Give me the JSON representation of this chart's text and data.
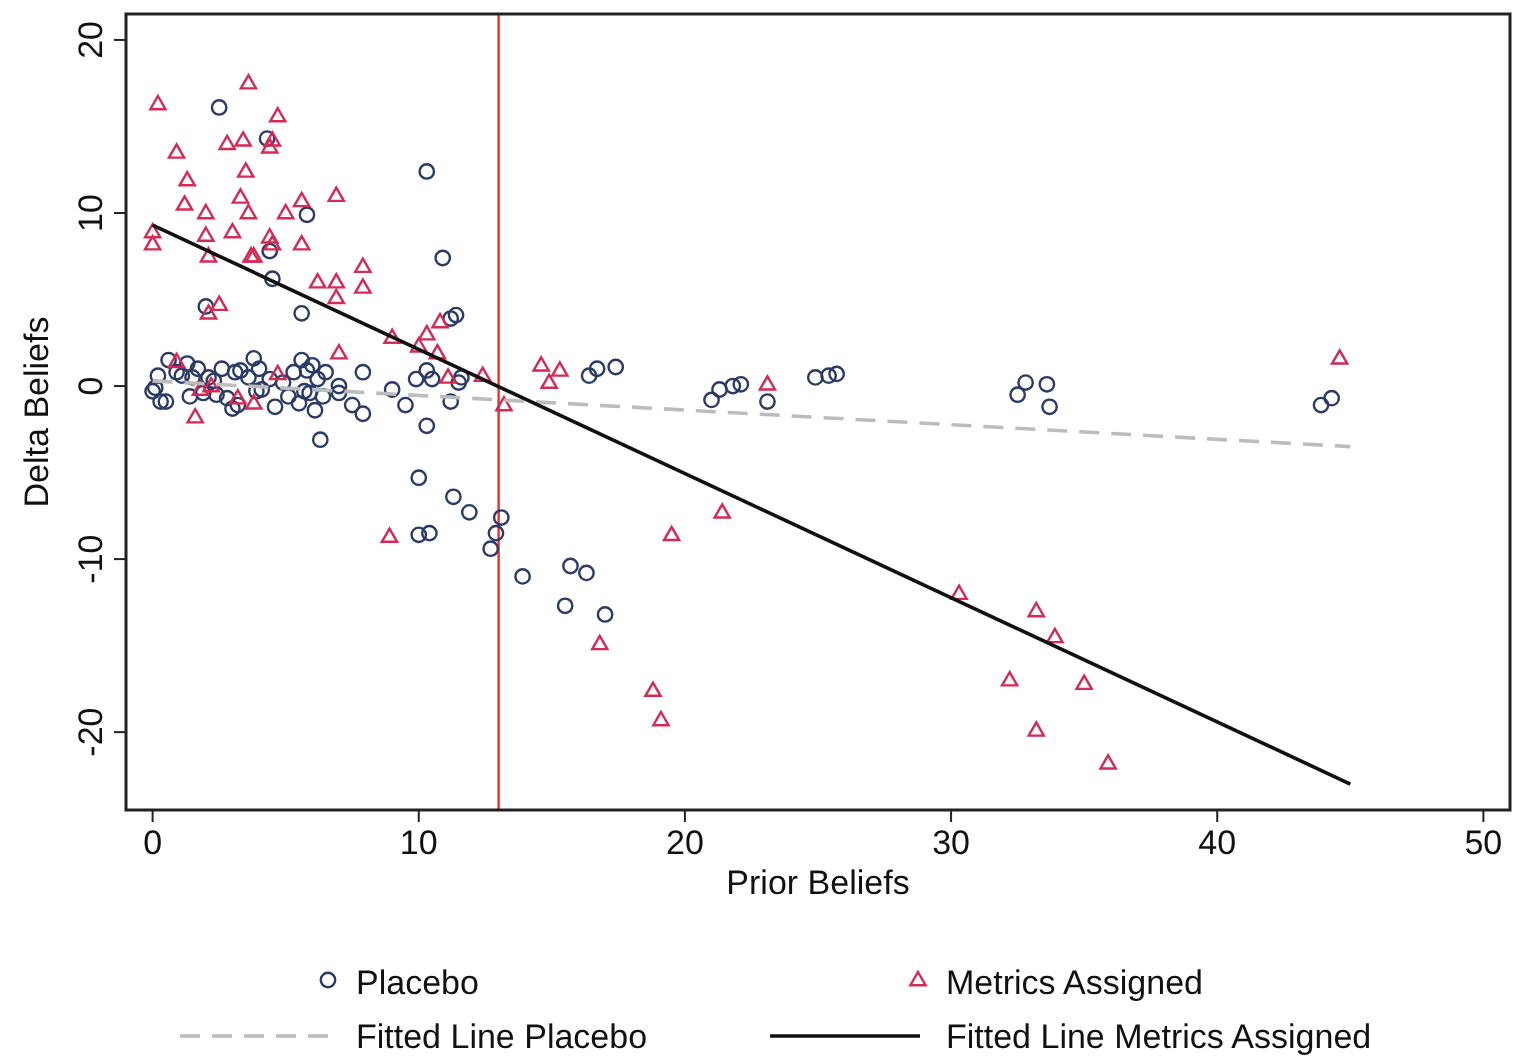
{
  "chart_data": {
    "type": "scatter",
    "xlabel": "Prior Beliefs",
    "ylabel": "Delta Beliefs",
    "xlim": [
      -1,
      51
    ],
    "ylim": [
      -24.5,
      21.5
    ],
    "xticks": [
      0,
      10,
      20,
      30,
      40,
      50
    ],
    "yticks": [
      -20,
      -10,
      0,
      10,
      20
    ],
    "grid": false,
    "legend": "bottom",
    "ref_lines": [
      {
        "axis": "x",
        "value": 13,
        "color": "#e8312a"
      }
    ],
    "series": [
      {
        "name": "Placebo",
        "marker": "circle",
        "color": "#2b3a67",
        "x": [
          2.5,
          4.3,
          5.8,
          10.3,
          10.9,
          4.4,
          4.5,
          2.0,
          5.6,
          11.2,
          11.4,
          6.3,
          10.0,
          10.3,
          10.0,
          10.4,
          11.3,
          11.9,
          13.1,
          12.9,
          12.7,
          13.9,
          15.7,
          16.3,
          15.5,
          17.0,
          16.4,
          16.7,
          17.4,
          21.0,
          21.3,
          21.8,
          22.1,
          23.1,
          24.9,
          25.4,
          25.7,
          32.5,
          32.8,
          33.6,
          33.7,
          43.9,
          44.3,
          9.0,
          9.5,
          9.9,
          10.3,
          10.5,
          11.2,
          11.5,
          11.6,
          7.9,
          7.5,
          7.9,
          7.0,
          7.0,
          0,
          0.1,
          0.2,
          0.3,
          0.5,
          0.6,
          0.9,
          1.1,
          1.3,
          1.4,
          1.5,
          1.7,
          1.9,
          2.1,
          2.3,
          2.6,
          2.8,
          3.0,
          3.1,
          3.3,
          3.6,
          3.8,
          3.9,
          4.1,
          4.4,
          4.6,
          4.9,
          5.1,
          5.3,
          5.5,
          5.6,
          5.8,
          5.9,
          6.0,
          6.1,
          6.2,
          6.4,
          6.5,
          3.2,
          4.0,
          2.4,
          5.7
        ],
        "values": [
          16.1,
          14.3,
          9.9,
          12.4,
          7.4,
          7.8,
          6.2,
          4.6,
          4.2,
          3.9,
          4.1,
          -3.1,
          -5.3,
          -2.3,
          -8.6,
          -8.5,
          -6.4,
          -7.3,
          -7.6,
          -8.5,
          -9.4,
          -11.0,
          -10.4,
          -10.8,
          -12.7,
          -13.2,
          0.6,
          1.0,
          1.1,
          -0.8,
          -0.2,
          0,
          0.1,
          -0.9,
          0.5,
          0.6,
          0.7,
          -0.5,
          0.2,
          0.1,
          -1.2,
          -1.1,
          -0.7,
          -0.2,
          -1.1,
          0.4,
          0.9,
          0.4,
          -0.9,
          0.2,
          0.5,
          0.8,
          -1.1,
          -1.6,
          0,
          -0.4,
          -0.3,
          -0.1,
          0.6,
          -0.9,
          -0.9,
          1.5,
          0.8,
          0.6,
          1.3,
          -0.6,
          0.5,
          1.0,
          -0.4,
          0.5,
          0.3,
          1.0,
          -0.7,
          -1.3,
          0.8,
          0.9,
          0.5,
          1.6,
          -0.3,
          -0.2,
          0.4,
          -1.2,
          0.2,
          -0.6,
          0.8,
          -1.0,
          1.5,
          0.9,
          -0.4,
          1.2,
          -1.4,
          0.4,
          -0.6,
          0.8,
          -1.1,
          1.0,
          -0.5,
          -0.3
        ]
      },
      {
        "name": "Metrics Assigned",
        "marker": "triangle",
        "color": "#d42a55",
        "x": [
          0.2,
          0,
          0,
          0.9,
          1.3,
          1.2,
          2.0,
          2.0,
          2.1,
          2.1,
          2.5,
          2.8,
          3.0,
          3.4,
          3.6,
          3.5,
          3.3,
          3.6,
          3.7,
          3.8,
          4.4,
          4.5,
          4.7,
          4.4,
          4.5,
          5.0,
          5.6,
          5.6,
          6.2,
          6.9,
          6.9,
          6.9,
          7.9,
          7.9,
          7.0,
          9.0,
          10.0,
          10.3,
          10.8,
          10.7,
          11.1,
          12.4,
          13.2,
          8.9,
          0.9,
          1.6,
          1.8,
          2.2,
          3.2,
          3.8,
          4.7,
          14.6,
          15.3,
          14.9,
          23.1,
          16.8,
          18.8,
          19.1,
          19.5,
          21.4,
          30.3,
          33.2,
          33.9,
          32.2,
          35.0,
          33.2,
          35.9,
          44.6
        ],
        "values": [
          16.3,
          8.9,
          8.2,
          13.5,
          11.9,
          10.5,
          10.0,
          8.7,
          7.5,
          4.2,
          4.7,
          14.0,
          8.9,
          14.2,
          17.5,
          12.4,
          10.9,
          10.0,
          7.5,
          7.5,
          13.8,
          14.2,
          15.6,
          8.6,
          8.2,
          10.0,
          10.7,
          8.2,
          6.0,
          11.0,
          6.0,
          5.1,
          6.9,
          5.7,
          1.9,
          2.8,
          2.3,
          3.0,
          3.7,
          1.9,
          0.5,
          0.6,
          -1.1,
          -8.7,
          1.4,
          -1.8,
          -0.2,
          0,
          -0.7,
          -1.0,
          0.7,
          1.2,
          0.9,
          0.2,
          0.1,
          -14.9,
          -17.6,
          -19.3,
          -8.6,
          -7.3,
          -12.0,
          -13.0,
          -14.5,
          -17.0,
          -17.2,
          -19.9,
          -21.8,
          1.6
        ]
      },
      {
        "name": "Fitted Line Placebo",
        "type": "line",
        "line_style": "dashed",
        "color": "#bcbcbc",
        "x": [
          0,
          45
        ],
        "values": [
          0.3,
          -3.5
        ]
      },
      {
        "name": "Fitted Line Metrics Assigned",
        "type": "line",
        "line_style": "solid",
        "color": "#111111",
        "x": [
          0,
          45
        ],
        "values": [
          9.3,
          -23.0
        ]
      }
    ]
  }
}
